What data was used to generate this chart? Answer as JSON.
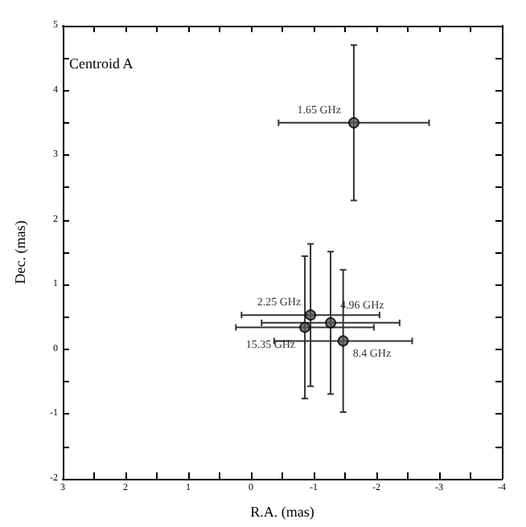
{
  "chart_data": {
    "type": "scatter",
    "title": "Centroid A",
    "xlabel": "R.A. (mas)",
    "ylabel": "Dec. (mas)",
    "x": [
      -1.64,
      -0.95,
      -1.27,
      -0.86,
      -1.47
    ],
    "values": [
      3.5,
      0.53,
      0.41,
      0.34,
      0.13
    ],
    "xerrors": [
      1.2,
      1.1,
      1.1,
      1.1,
      1.1
    ],
    "errors": [
      1.2,
      1.1,
      1.1,
      1.1,
      1.1
    ],
    "color": "#555555",
    "marker": "circle",
    "grid": false,
    "xlim": [
      3,
      -4
    ],
    "xticks": [
      3,
      {
        "value": 2.5,
        "label": null
      },
      2,
      {
        "value": 1.5,
        "label": null
      },
      1,
      {
        "value": 0.5,
        "label": null
      },
      0,
      {
        "value": -0.5,
        "label": null
      },
      -1,
      {
        "value": -1.5,
        "label": null
      },
      -2,
      {
        "value": -2.5,
        "label": null
      },
      -3,
      {
        "value": -3.5,
        "label": null
      },
      -4
    ],
    "ylim": [
      -2,
      5
    ],
    "yticks": [
      -2,
      {
        "value": -1.5,
        "label": null
      },
      -1,
      {
        "value": -0.5,
        "label": null
      },
      0,
      {
        "value": 0.5,
        "label": null
      },
      1,
      {
        "value": 1.5,
        "label": null
      },
      2,
      {
        "value": 2.5,
        "label": null
      },
      3,
      {
        "value": 3.5,
        "label": null
      },
      4,
      {
        "value": 4.5,
        "label": null
      },
      5
    ],
    "annotations": [
      {
        "text": "1.65 GHz",
        "x": -1.64,
        "y": 3.5
      },
      {
        "text": "2.25 GHz",
        "x": -0.95,
        "y": 0.53
      },
      {
        "text": "4.96 GHz",
        "x": -1.27,
        "y": 0.41
      },
      {
        "text": "15.35 GHz",
        "x": -0.86,
        "y": 0.34
      },
      {
        "text": "8.4 GHz",
        "x": -1.47,
        "y": 0.13
      }
    ]
  }
}
